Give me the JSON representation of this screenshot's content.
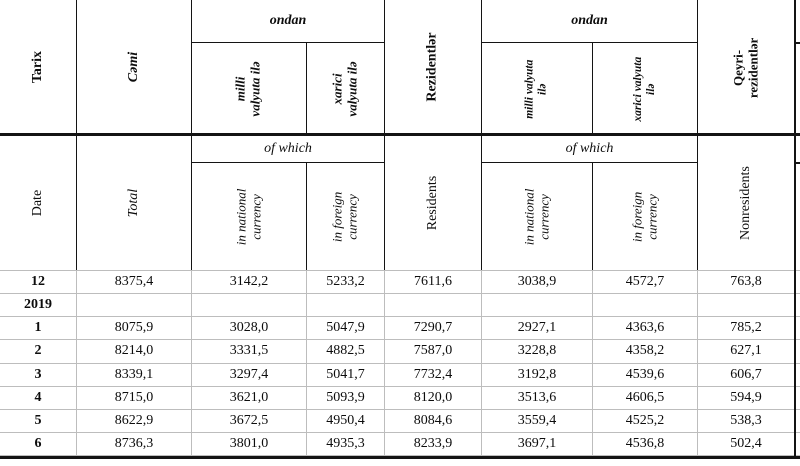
{
  "header_az": {
    "tarix": "Tarix",
    "cemi": "Cəmi",
    "ondan_total": "ondan",
    "milli_total": "milli\nvalyuta ilə",
    "xarici_total": "xarici\nvalyuta ilə",
    "rezidentler": "Rezidentlər",
    "ondan_residents": "ondan",
    "milli_residents": "milli valyuta\nilə",
    "xarici_residents": "xarici valyuta\nilə",
    "qeyri_rezidentler": "Qeyri-\nrezidentlər"
  },
  "header_en": {
    "date": "Date",
    "total": "Total",
    "of_which_total": "of which",
    "national_total": "in national\ncurrency",
    "foreign_total": "in foreign\ncurrency",
    "residents": "Residents",
    "of_which_residents": "of which",
    "national_residents": "in national\ncurrency",
    "foreign_residents": "in foreign\ncurrency",
    "nonresidents": "Nonresidents"
  },
  "table": {
    "decimal_separator": ",",
    "rows": [
      {
        "label": "12",
        "values": [
          "8375,4",
          "3142,2",
          "5233,2",
          "7611,6",
          "3038,9",
          "4572,7",
          "763,8"
        ]
      },
      {
        "label": "2019",
        "values": [
          "",
          "",
          "",
          "",
          "",
          "",
          ""
        ]
      },
      {
        "label": "1",
        "values": [
          "8075,9",
          "3028,0",
          "5047,9",
          "7290,7",
          "2927,1",
          "4363,6",
          "785,2"
        ]
      },
      {
        "label": "2",
        "values": [
          "8214,0",
          "3331,5",
          "4882,5",
          "7587,0",
          "3228,8",
          "4358,2",
          "627,1"
        ]
      },
      {
        "label": "3",
        "values": [
          "8339,1",
          "3297,4",
          "5041,7",
          "7732,4",
          "3192,8",
          "4539,6",
          "606,7"
        ]
      },
      {
        "label": "4",
        "values": [
          "8715,0",
          "3621,0",
          "5093,9",
          "8120,0",
          "3513,6",
          "4606,5",
          "594,9"
        ]
      },
      {
        "label": "5",
        "values": [
          "8622,9",
          "3672,5",
          "4950,4",
          "8084,6",
          "3559,4",
          "4525,2",
          "538,3"
        ]
      },
      {
        "label": "6",
        "values": [
          "8736,3",
          "3801,0",
          "4935,3",
          "8233,9",
          "3697,1",
          "4536,8",
          "502,4"
        ]
      }
    ]
  },
  "colors": {
    "header_grid": "#141414",
    "data_grid": "#bdbdbd",
    "text": "#0d0d0d",
    "background": "#ffffff"
  }
}
